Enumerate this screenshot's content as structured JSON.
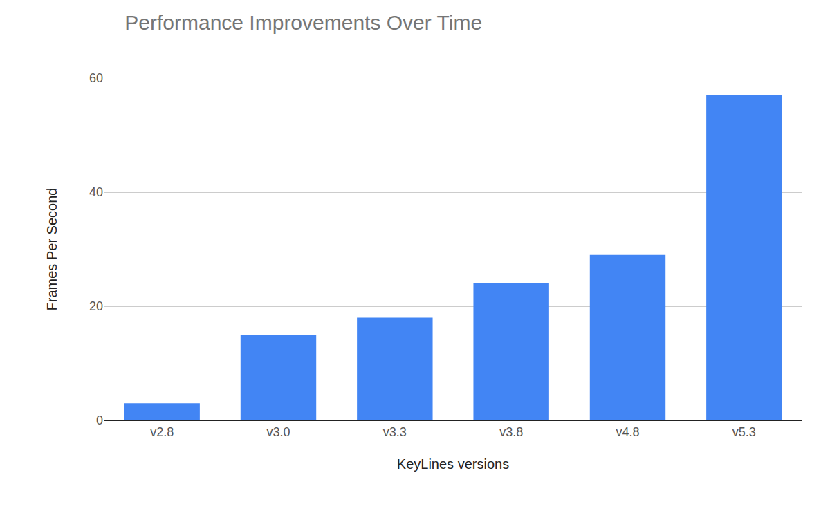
{
  "chart_data": {
    "type": "bar",
    "title": "Performance Improvements Over Time",
    "x_label": "KeyLines versions",
    "y_label": "Frames Per Second",
    "categories": [
      "v2.8",
      "v3.0",
      "v3.3",
      "v3.8",
      "v4.8",
      "v5.3"
    ],
    "values": [
      3,
      15,
      18,
      24,
      29,
      57
    ],
    "color": "#4285f4",
    "ylim": [
      0,
      60
    ],
    "yticks": [
      0,
      20,
      40,
      60
    ],
    "grid": true
  }
}
